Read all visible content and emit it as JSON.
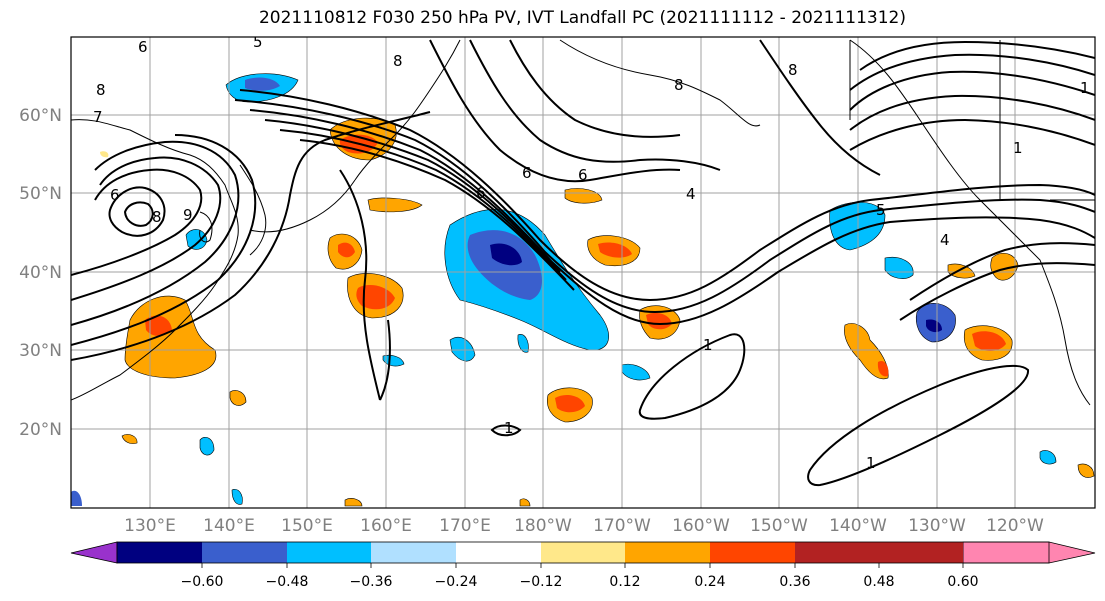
{
  "title": "2021110812 F030 250 hPa PV, IVT Landfall PC (2021111112 - 2021111312)",
  "map": {
    "lat_labels": [
      "60°N",
      "50°N",
      "40°N",
      "30°N",
      "20°N"
    ],
    "lon_labels": [
      "130°E",
      "140°E",
      "150°E",
      "160°E",
      "170°E",
      "180°W",
      "170°W",
      "160°W",
      "150°W",
      "140°W",
      "130°W",
      "120°W"
    ],
    "contour_labels": [
      "6",
      "5",
      "8",
      "7",
      "6",
      "8",
      "9",
      "8",
      "6",
      "6",
      "6",
      "4",
      "8",
      "8",
      "1",
      "4",
      "5",
      "1",
      "1",
      "1",
      "1"
    ]
  },
  "colorbar": {
    "ticks": [
      "−0.60",
      "−0.48",
      "−0.36",
      "−0.24",
      "−0.12",
      "0.12",
      "0.24",
      "0.36",
      "0.48",
      "0.60"
    ],
    "colors": [
      "#9932cc",
      "#000080",
      "#3a5fcd",
      "#00bfff",
      "#b0e0ff",
      "#ffffff",
      "#ffe88a",
      "#ffa500",
      "#ff4500",
      "#b22222",
      "#ff85b0"
    ]
  }
}
